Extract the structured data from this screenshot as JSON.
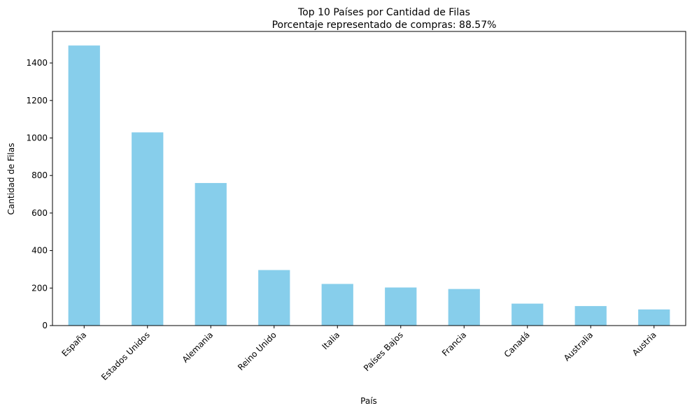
{
  "chart_data": {
    "type": "bar",
    "title": "Top 10 Países por Cantidad de Filas",
    "subtitle": "Porcentaje representado de compras: 88.57%",
    "xlabel": "País",
    "ylabel": "Cantidad de Filas",
    "categories": [
      "España",
      "Estados Unidos",
      "Alemania",
      "Reino Unido",
      "Italia",
      "Países Bajos",
      "Francia",
      "Canadá",
      "Australia",
      "Austria"
    ],
    "values": [
      1493,
      1030,
      760,
      296,
      222,
      203,
      195,
      117,
      104,
      86
    ],
    "ylim": [
      0,
      1568
    ],
    "yticks": [
      0,
      200,
      400,
      600,
      800,
      1000,
      1200,
      1400
    ],
    "bar_color": "#87ceeb",
    "grid": false,
    "legend": "none"
  }
}
